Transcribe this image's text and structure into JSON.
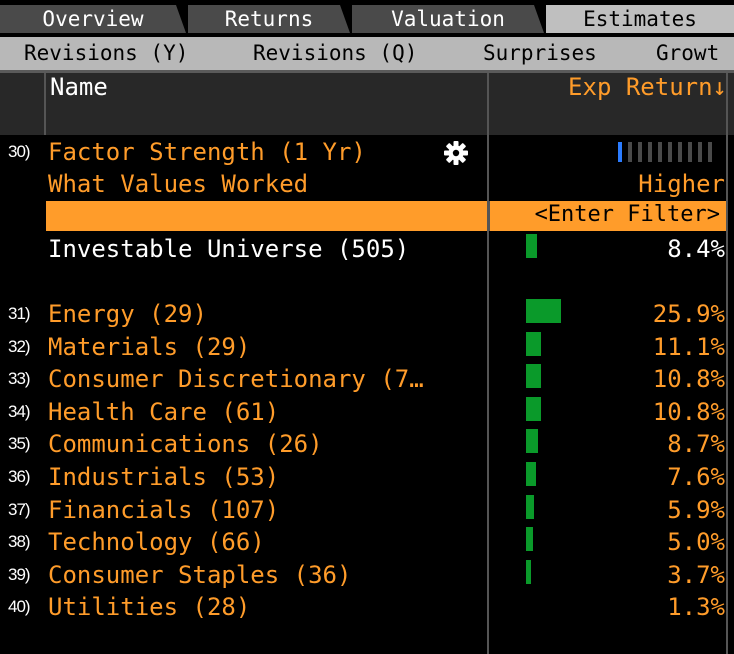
{
  "tabs": [
    "Overview",
    "Returns",
    "Valuation",
    "Estimates"
  ],
  "active_tab": "Estimates",
  "subtabs": [
    "Revisions (Y)",
    "Revisions (Q)",
    "Surprises",
    "Growt"
  ],
  "columns": {
    "name": "Name",
    "exp_return": "Exp Return↓"
  },
  "factor": {
    "num": "30)",
    "label": "Factor Strength (1 Yr)",
    "what_values": "What Values Worked",
    "direction": "Higher",
    "strength_level": 1,
    "strength_max": 10
  },
  "filter": {
    "placeholder": "<Enter Filter>"
  },
  "universe": {
    "label": "Investable Universe (505)",
    "value": "8.4%",
    "value_num": 8.4
  },
  "sectors": [
    {
      "num": "31)",
      "label": "Energy (29)",
      "value": "25.9%",
      "value_num": 25.9
    },
    {
      "num": "32)",
      "label": "Materials (29)",
      "value": "11.1%",
      "value_num": 11.1
    },
    {
      "num": "33)",
      "label": "Consumer Discretionary (7…",
      "value": "10.8%",
      "value_num": 10.8
    },
    {
      "num": "34)",
      "label": "Health Care (61)",
      "value": "10.8%",
      "value_num": 10.8
    },
    {
      "num": "35)",
      "label": "Communications (26)",
      "value": "8.7%",
      "value_num": 8.7
    },
    {
      "num": "36)",
      "label": "Industrials (53)",
      "value": "7.6%",
      "value_num": 7.6
    },
    {
      "num": "37)",
      "label": "Financials (107)",
      "value": "5.9%",
      "value_num": 5.9
    },
    {
      "num": "38)",
      "label": "Technology (66)",
      "value": "5.0%",
      "value_num": 5.0
    },
    {
      "num": "39)",
      "label": "Consumer Staples (36)",
      "value": "3.7%",
      "value_num": 3.7
    },
    {
      "num": "40)",
      "label": "Utilities (28)",
      "value": "1.3%",
      "value_num": 1.3
    }
  ],
  "colors": {
    "accent": "#ff9c2a",
    "bar": "#0a9a2a",
    "meter_on": "#2b7cff"
  },
  "icons": {
    "settings": "gear-icon"
  }
}
